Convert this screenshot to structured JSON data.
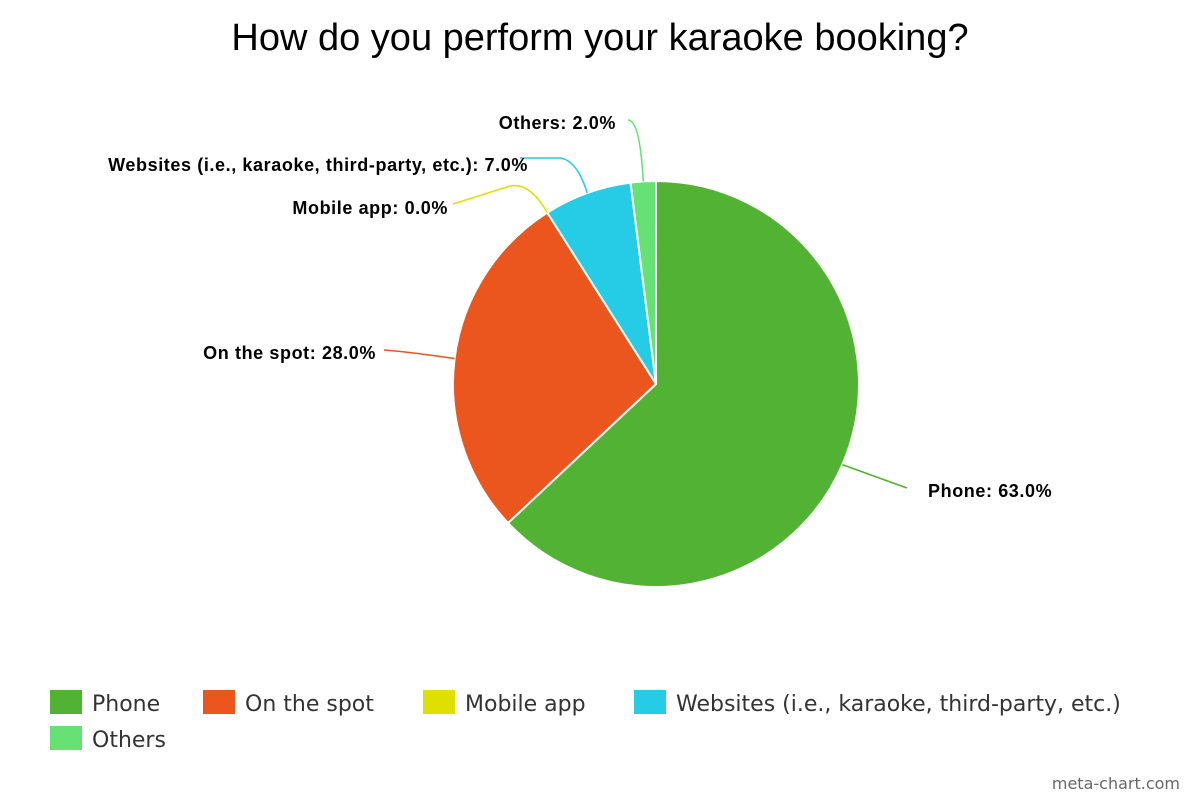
{
  "chart_data": {
    "type": "pie",
    "title": "How do you perform your karaoke booking?",
    "categories": [
      "Phone",
      "On the spot",
      "Mobile app",
      "Websites (i.e., karaoke, third-party, etc.)",
      "Others"
    ],
    "values": [
      63.0,
      28.0,
      0.0,
      7.0,
      2.0
    ],
    "value_labels": [
      "Phone: 63.0%",
      "On the spot: 28.0%",
      "Mobile app: 0.0%",
      "Websites (i.e., karaoke, third-party, etc.): 7.0%",
      "Others: 2.0%"
    ],
    "colors": [
      "#51b233",
      "#ea561e",
      "#dfdf00",
      "#26cce6",
      "#66e175"
    ],
    "legend_position": "bottom",
    "start_angle": "12 o'clock",
    "direction": "clockwise"
  },
  "credit": "meta-chart.com"
}
